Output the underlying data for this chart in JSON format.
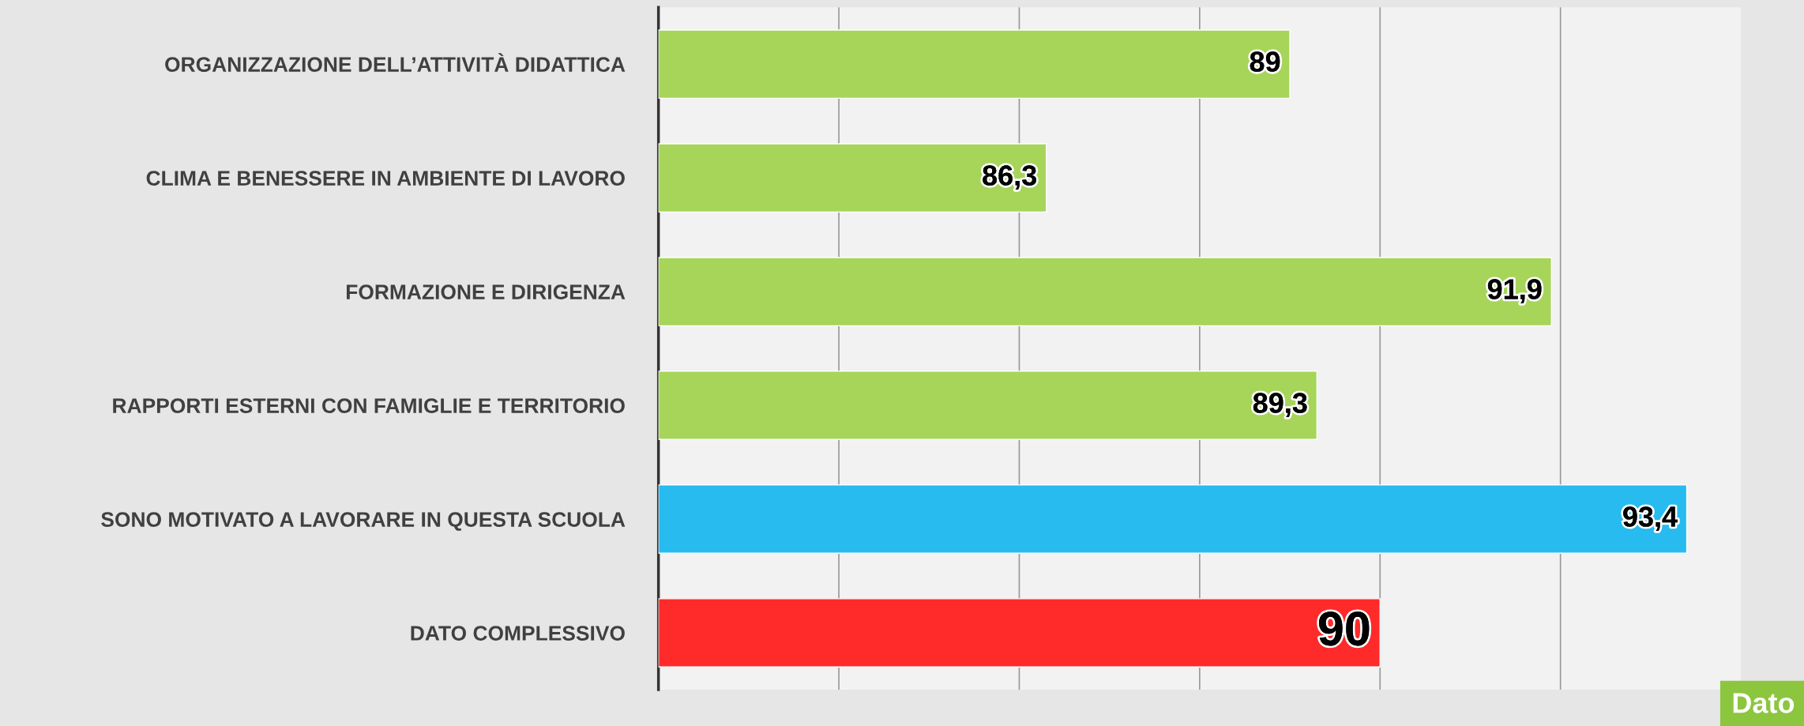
{
  "chart_data": {
    "type": "bar",
    "orientation": "horizontal",
    "categories": [
      "ORGANIZZAZIONE DELL’ATTIVITÀ DIDATTICA",
      "CLIMA E BENESSERE IN AMBIENTE DI LAVORO",
      "FORMAZIONE E DIRIGENZA",
      "RAPPORTI ESTERNI CON FAMIGLIE E TERRITORIO",
      "SONO MOTIVATO A LAVORARE IN QUESTA SCUOLA",
      "DATO COMPLESSIVO"
    ],
    "values": [
      89,
      86.3,
      91.9,
      89.3,
      93.4,
      90
    ],
    "colors": [
      "#a6d55a",
      "#a6d55a",
      "#a6d55a",
      "#a6d55a",
      "#27bbef",
      "#ff2a2a"
    ],
    "value_labels": [
      "89",
      "86,3",
      "91,9",
      "89,3",
      "93,4",
      "90"
    ],
    "xlim": [
      82,
      94
    ],
    "xticks": [
      {
        "value": 84,
        "label": null
      },
      {
        "value": 86,
        "label": null
      },
      {
        "value": 88,
        "label": null
      },
      {
        "value": 90,
        "label": null
      },
      {
        "value": 92,
        "label": null
      }
    ],
    "grid": "x",
    "annotations": [
      "Dato"
    ]
  }
}
